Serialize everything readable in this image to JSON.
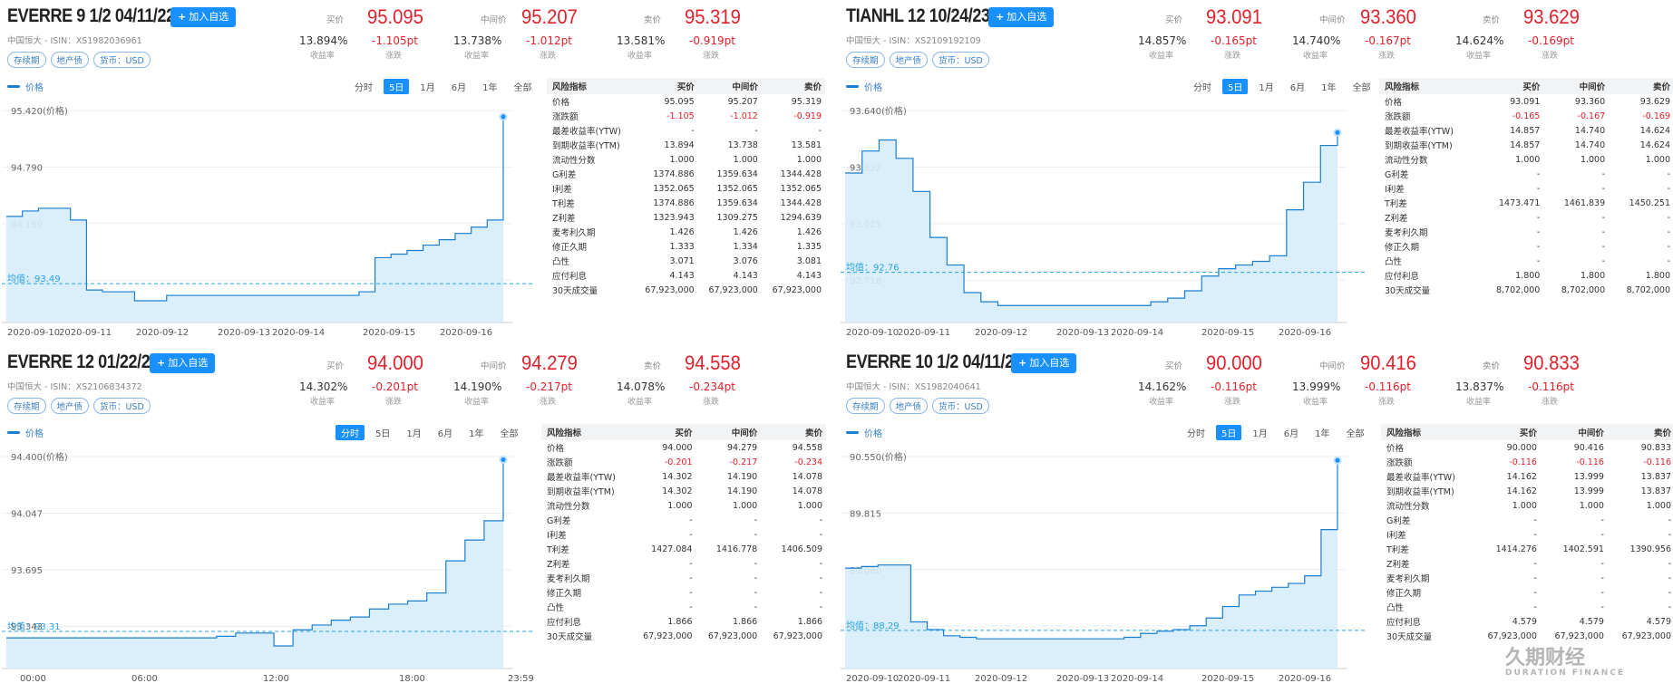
{
  "app": {
    "add_label": "加入自选",
    "labels": {
      "bid": "买价",
      "mid": "中间价",
      "ask": "卖价",
      "yield": "收益率",
      "change": "涨跌",
      "legend": "价格"
    },
    "ranges": [
      "分时",
      "5日",
      "1月",
      "6月",
      "1年",
      "全部"
    ],
    "risk_headers": [
      "风险指标",
      "买价",
      "中间价",
      "卖价"
    ],
    "colors": {
      "accent": "#1890ff",
      "up_red": "#e0202a",
      "line": "#1a7fd0",
      "fill": "#d6ecfb"
    },
    "watermark": {
      "cn": "久期财经",
      "en": "DURATION FINANCE"
    }
  },
  "panels": [
    {
      "title": "EVERRE 9 1/2 04/11/22",
      "isin": "中国恒大 - ISIN：XS1982036961",
      "tags": [
        "存续期",
        "地产债",
        "货币：USD"
      ],
      "bid": {
        "price": "95.095",
        "yield": "13.894%",
        "change": "-1.105pt"
      },
      "mid": {
        "price": "95.207",
        "yield": "13.738%",
        "change": "-1.012pt"
      },
      "ask": {
        "price": "95.319",
        "yield": "13.581%",
        "change": "-0.919pt"
      },
      "active_range": "5日",
      "y_ticks": [
        "95.420(价格)",
        "94.790",
        "94.160",
        "93.530"
      ],
      "avg_label": "均值：93.49",
      "x_ticks": [
        "2020-09-10",
        "2020-09-11",
        "2020-09-12",
        "2020-09-13",
        "2020-09-14",
        "2020-09-15",
        "2020-09-16"
      ],
      "price_series": [
        94.24,
        94.3,
        94.33,
        94.33,
        94.2,
        93.42,
        93.4,
        93.4,
        93.3,
        93.3,
        93.36,
        93.36,
        93.36,
        93.36,
        93.36,
        93.36,
        93.36,
        93.36,
        93.36,
        93.36,
        93.36,
        93.36,
        93.4,
        93.78,
        93.82,
        93.86,
        93.92,
        93.98,
        94.05,
        94.12,
        94.2,
        95.35
      ],
      "risk": [
        [
          "价格",
          "95.095",
          "95.207",
          "95.319"
        ],
        [
          "涨跌额",
          "-1.105",
          "-1.012",
          "-0.919"
        ],
        [
          "最差收益率(YTW)",
          "-",
          "-",
          "-"
        ],
        [
          "到期收益率(YTM)",
          "13.894",
          "13.738",
          "13.581"
        ],
        [
          "流动性分数",
          "1.000",
          "1.000",
          "1.000"
        ],
        [
          "G利差",
          "1374.886",
          "1359.634",
          "1344.428"
        ],
        [
          "I利差",
          "1352.065",
          "1352.065",
          "1352.065"
        ],
        [
          "T利差",
          "1374.886",
          "1359.634",
          "1344.428"
        ],
        [
          "Z利差",
          "1323.943",
          "1309.275",
          "1294.639"
        ],
        [
          "麦考利久期",
          "1.426",
          "1.426",
          "1.426"
        ],
        [
          "修正久期",
          "1.333",
          "1.334",
          "1.335"
        ],
        [
          "凸性",
          "3.071",
          "3.076",
          "3.081"
        ],
        [
          "应付利息",
          "4.143",
          "4.143",
          "4.143"
        ],
        [
          "30天成交量",
          "67,923,000",
          "67,923,000",
          "67,923,000"
        ]
      ]
    },
    {
      "title": "TIANHL 12 10/24/23",
      "isin": "中国恒大 - ISIN：XS2109192109",
      "tags": [
        "存续期",
        "地产债",
        "货币：USD"
      ],
      "bid": {
        "price": "93.091",
        "yield": "14.857%",
        "change": "-0.165pt"
      },
      "mid": {
        "price": "93.360",
        "yield": "14.740%",
        "change": "-0.167pt"
      },
      "ask": {
        "price": "93.629",
        "yield": "14.624%",
        "change": "-0.169pt"
      },
      "active_range": "5日",
      "y_ticks": [
        "93.640(价格)",
        "93.332",
        "93.025",
        "92.718"
      ],
      "avg_label": "均值：92.76",
      "x_ticks": [
        "2020-09-10",
        "2020-09-11",
        "2020-09-12",
        "2020-09-13",
        "2020-09-14",
        "2020-09-15",
        "2020-09-16"
      ],
      "price_series": [
        93.3,
        93.42,
        93.48,
        93.38,
        93.2,
        92.95,
        92.8,
        92.65,
        92.6,
        92.58,
        92.58,
        92.58,
        92.58,
        92.58,
        92.58,
        92.58,
        92.58,
        92.58,
        92.6,
        92.62,
        92.66,
        92.74,
        92.78,
        92.8,
        92.82,
        92.85,
        93.1,
        93.25,
        93.45,
        93.52
      ],
      "risk": [
        [
          "价格",
          "93.091",
          "93.360",
          "93.629"
        ],
        [
          "涨跌额",
          "-0.165",
          "-0.167",
          "-0.169"
        ],
        [
          "最差收益率(YTW)",
          "14.857",
          "14.740",
          "14.624"
        ],
        [
          "到期收益率(YTM)",
          "14.857",
          "14.740",
          "14.624"
        ],
        [
          "流动性分数",
          "1.000",
          "1.000",
          "1.000"
        ],
        [
          "G利差",
          "-",
          "-",
          "-"
        ],
        [
          "I利差",
          "-",
          "-",
          "-"
        ],
        [
          "T利差",
          "1473.471",
          "1461.839",
          "1450.251"
        ],
        [
          "Z利差",
          "-",
          "-",
          "-"
        ],
        [
          "麦考利久期",
          "-",
          "-",
          "-"
        ],
        [
          "修正久期",
          "-",
          "-",
          "-"
        ],
        [
          "凸性",
          "-",
          "-",
          "-"
        ],
        [
          "应付利息",
          "1.800",
          "1.800",
          "1.800"
        ],
        [
          "30天成交量",
          "8,702,000",
          "8,702,000",
          "8,702,000"
        ]
      ]
    },
    {
      "title": "EVERRE 12 01/22/24",
      "isin": "中国恒大 - ISIN：XS2106834372",
      "tags": [
        "存续期",
        "地产债",
        "货币：USD"
      ],
      "bid": {
        "price": "94.000",
        "yield": "14.302%",
        "change": "-0.201pt"
      },
      "mid": {
        "price": "94.279",
        "yield": "14.190%",
        "change": "-0.217pt"
      },
      "ask": {
        "price": "94.558",
        "yield": "14.078%",
        "change": "-0.234pt"
      },
      "active_range": "分时",
      "y_ticks": [
        "94.400(价格)",
        "94.047",
        "93.695",
        "93.343"
      ],
      "avg_label": "均值：93.31",
      "x_ticks": [
        "00:00",
        "06:00",
        "12:00",
        "18:00",
        "23:59"
      ],
      "price_series": [
        93.27,
        93.27,
        93.27,
        93.27,
        93.27,
        93.27,
        93.27,
        93.27,
        93.27,
        93.27,
        93.27,
        93.28,
        93.3,
        93.3,
        93.22,
        93.32,
        93.35,
        93.38,
        93.4,
        93.45,
        93.48,
        93.5,
        93.55,
        93.75,
        93.88,
        94.0,
        94.38
      ],
      "risk": [
        [
          "价格",
          "94.000",
          "94.279",
          "94.558"
        ],
        [
          "涨跌额",
          "-0.201",
          "-0.217",
          "-0.234"
        ],
        [
          "最差收益率(YTW)",
          "14.302",
          "14.190",
          "14.078"
        ],
        [
          "到期收益率(YTM)",
          "14.302",
          "14.190",
          "14.078"
        ],
        [
          "流动性分数",
          "1.000",
          "1.000",
          "1.000"
        ],
        [
          "G利差",
          "-",
          "-",
          "-"
        ],
        [
          "I利差",
          "-",
          "-",
          "-"
        ],
        [
          "T利差",
          "1427.084",
          "1416.778",
          "1406.509"
        ],
        [
          "Z利差",
          "-",
          "-",
          "-"
        ],
        [
          "麦考利久期",
          "-",
          "-",
          "-"
        ],
        [
          "修正久期",
          "-",
          "-",
          "-"
        ],
        [
          "凸性",
          "-",
          "-",
          "-"
        ],
        [
          "应付利息",
          "1.866",
          "1.866",
          "1.866"
        ],
        [
          "30天成交量",
          "67,923,000",
          "67,923,000",
          "67,923,000"
        ]
      ]
    },
    {
      "title": "EVERRE 10 1/2 04/11/24",
      "isin": "中国恒大 - ISIN：XS1982040641",
      "tags": [
        "存续期",
        "地产债",
        "货币：USD"
      ],
      "bid": {
        "price": "90.000",
        "yield": "14.162%",
        "change": "-0.116pt"
      },
      "mid": {
        "price": "90.416",
        "yield": "13.999%",
        "change": "-0.116pt"
      },
      "ask": {
        "price": "90.833",
        "yield": "13.837%",
        "change": "-0.116pt"
      },
      "active_range": "5日",
      "y_ticks": [
        "90.550(价格)",
        "89.815",
        "89.080",
        "88.345"
      ],
      "avg_label": "均值：88.29",
      "x_ticks": [
        "2020-09-10",
        "2020-09-11",
        "2020-09-12",
        "2020-09-13",
        "2020-09-14",
        "2020-09-15",
        "2020-09-16"
      ],
      "price_series": [
        89.1,
        89.12,
        89.14,
        89.14,
        88.4,
        88.3,
        88.22,
        88.2,
        88.18,
        88.18,
        88.18,
        88.18,
        88.18,
        88.18,
        88.18,
        88.18,
        88.18,
        88.2,
        88.25,
        88.28,
        88.3,
        88.35,
        88.45,
        88.6,
        88.75,
        88.8,
        88.85,
        88.9,
        89.0,
        89.6,
        90.5
      ],
      "risk": [
        [
          "价格",
          "90.000",
          "90.416",
          "90.833"
        ],
        [
          "涨跌额",
          "-0.116",
          "-0.116",
          "-0.116"
        ],
        [
          "最差收益率(YTW)",
          "14.162",
          "13.999",
          "13.837"
        ],
        [
          "到期收益率(YTM)",
          "14.162",
          "13.999",
          "13.837"
        ],
        [
          "流动性分数",
          "1.000",
          "1.000",
          "1.000"
        ],
        [
          "G利差",
          "-",
          "-",
          "-"
        ],
        [
          "I利差",
          "-",
          "-",
          "-"
        ],
        [
          "T利差",
          "1414.276",
          "1402.591",
          "1390.956"
        ],
        [
          "Z利差",
          "-",
          "-",
          "-"
        ],
        [
          "麦考利久期",
          "-",
          "-",
          "-"
        ],
        [
          "修正久期",
          "-",
          "-",
          "-"
        ],
        [
          "凸性",
          "-",
          "-",
          "-"
        ],
        [
          "应付利息",
          "4.579",
          "4.579",
          "4.579"
        ],
        [
          "30天成交量",
          "67,923,000",
          "67,923,000",
          "67,923,000"
        ]
      ]
    }
  ]
}
